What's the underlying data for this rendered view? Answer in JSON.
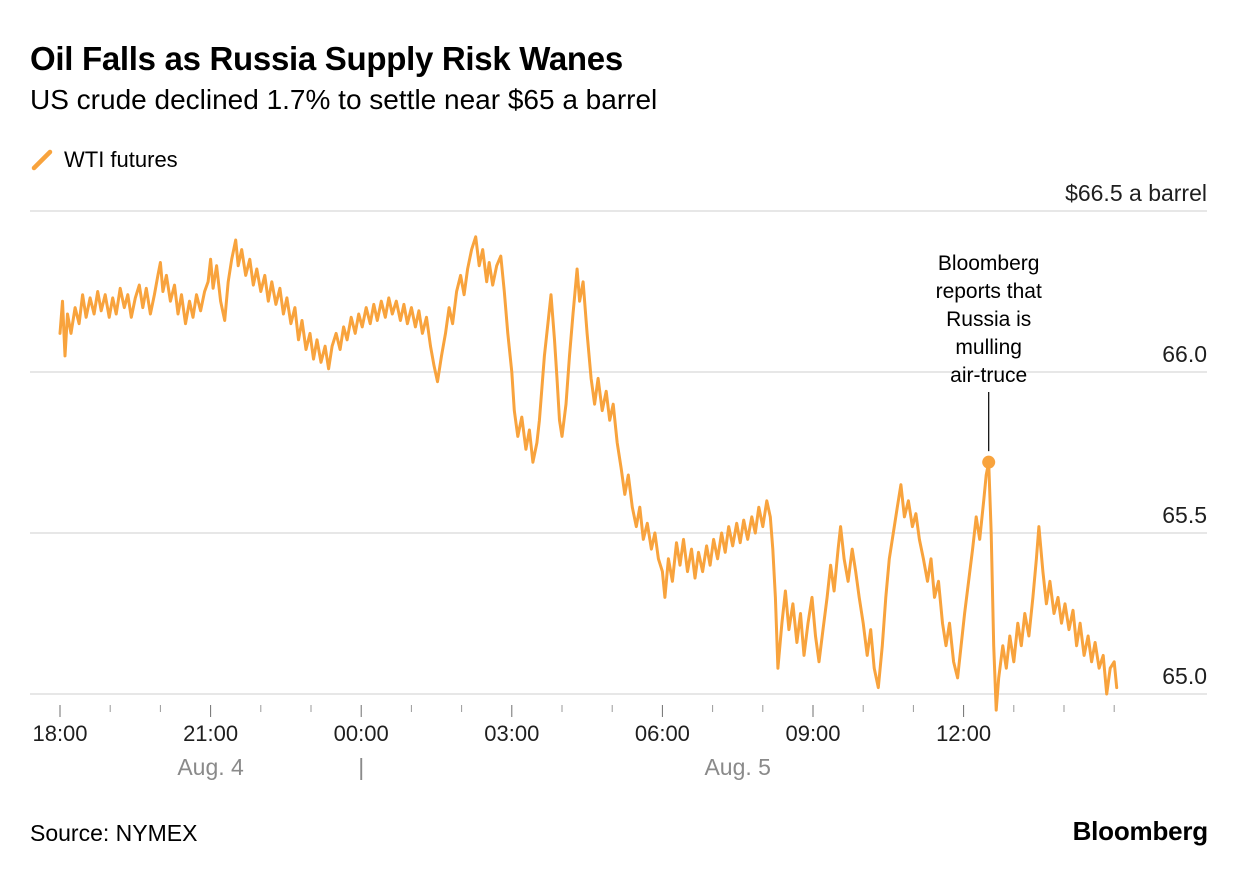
{
  "header": {
    "title": "Oil Falls as Russia Supply Risk Wanes",
    "subtitle": "US crude declined 1.7% to settle near $65 a barrel"
  },
  "legend": {
    "series_label": "WTI futures"
  },
  "footer": {
    "source": "Source: NYMEX",
    "brand": "Bloomberg"
  },
  "chart_data": {
    "type": "line",
    "title": "Oil Falls as Russia Supply Risk Wanes",
    "subtitle": "US crude declined 1.7% to settle near $65 a barrel",
    "x_unit": "hours since 18:00 on Aug. 4",
    "xlim": [
      0,
      21.1
    ],
    "ylim": [
      64.85,
      66.5
    ],
    "grid": "horizontal",
    "legend_position": "top-left",
    "accent_color": "#F8A33D",
    "yticks": [
      {
        "value": 66.5,
        "label": "$66.5 a barrel"
      },
      {
        "value": 66.0,
        "label": "66.0"
      },
      {
        "value": 65.5,
        "label": "65.5"
      },
      {
        "value": 65.0,
        "label": "65.0"
      }
    ],
    "xticks": [
      {
        "t": 0,
        "label": "18:00"
      },
      {
        "t": 3,
        "label": "21:00"
      },
      {
        "t": 6,
        "label": "00:00"
      },
      {
        "t": 9,
        "label": "03:00"
      },
      {
        "t": 12,
        "label": "06:00"
      },
      {
        "t": 15,
        "label": "09:00"
      },
      {
        "t": 18,
        "label": "12:00"
      }
    ],
    "minor_tick_every_hours": 1,
    "date_labels": [
      {
        "t_center": 3,
        "label": "Aug. 4"
      },
      {
        "t_center": 6,
        "label": "|"
      },
      {
        "t_center": 13.5,
        "label": "Aug. 5"
      }
    ],
    "annotation": {
      "lines": [
        "Bloomberg",
        "reports that",
        "Russia is",
        "mulling",
        "air-truce"
      ],
      "t": 18.5,
      "value": 65.72
    },
    "series": [
      {
        "name": "WTI futures",
        "color": "#F8A33D",
        "points": [
          [
            0,
            66.12
          ],
          [
            0.05,
            66.22
          ],
          [
            0.1,
            66.05
          ],
          [
            0.15,
            66.18
          ],
          [
            0.22,
            66.12
          ],
          [
            0.3,
            66.2
          ],
          [
            0.38,
            66.15
          ],
          [
            0.45,
            66.24
          ],
          [
            0.52,
            66.17
          ],
          [
            0.6,
            66.23
          ],
          [
            0.68,
            66.18
          ],
          [
            0.75,
            66.25
          ],
          [
            0.82,
            66.19
          ],
          [
            0.9,
            66.24
          ],
          [
            0.98,
            66.17
          ],
          [
            1.05,
            66.23
          ],
          [
            1.12,
            66.18
          ],
          [
            1.2,
            66.26
          ],
          [
            1.28,
            66.2
          ],
          [
            1.35,
            66.24
          ],
          [
            1.42,
            66.17
          ],
          [
            1.5,
            66.23
          ],
          [
            1.58,
            66.27
          ],
          [
            1.65,
            66.2
          ],
          [
            1.72,
            66.26
          ],
          [
            1.8,
            66.18
          ],
          [
            1.88,
            66.24
          ],
          [
            1.95,
            66.3
          ],
          [
            2,
            66.34
          ],
          [
            2.05,
            66.25
          ],
          [
            2.12,
            66.3
          ],
          [
            2.2,
            66.22
          ],
          [
            2.28,
            66.27
          ],
          [
            2.35,
            66.18
          ],
          [
            2.42,
            66.24
          ],
          [
            2.5,
            66.15
          ],
          [
            2.58,
            66.22
          ],
          [
            2.65,
            66.17
          ],
          [
            2.72,
            66.24
          ],
          [
            2.8,
            66.19
          ],
          [
            2.88,
            66.25
          ],
          [
            2.95,
            66.28
          ],
          [
            3,
            66.35
          ],
          [
            3.05,
            66.26
          ],
          [
            3.12,
            66.33
          ],
          [
            3.2,
            66.22
          ],
          [
            3.28,
            66.16
          ],
          [
            3.35,
            66.28
          ],
          [
            3.42,
            66.35
          ],
          [
            3.5,
            66.41
          ],
          [
            3.55,
            66.33
          ],
          [
            3.62,
            66.38
          ],
          [
            3.7,
            66.3
          ],
          [
            3.78,
            66.35
          ],
          [
            3.85,
            66.27
          ],
          [
            3.92,
            66.32
          ],
          [
            4,
            66.25
          ],
          [
            4.08,
            66.3
          ],
          [
            4.15,
            66.22
          ],
          [
            4.22,
            66.28
          ],
          [
            4.3,
            66.21
          ],
          [
            4.38,
            66.26
          ],
          [
            4.45,
            66.18
          ],
          [
            4.52,
            66.23
          ],
          [
            4.6,
            66.15
          ],
          [
            4.68,
            66.2
          ],
          [
            4.75,
            66.1
          ],
          [
            4.82,
            66.16
          ],
          [
            4.9,
            66.07
          ],
          [
            4.98,
            66.12
          ],
          [
            5.05,
            66.04
          ],
          [
            5.12,
            66.1
          ],
          [
            5.2,
            66.03
          ],
          [
            5.28,
            66.08
          ],
          [
            5.35,
            66.01
          ],
          [
            5.42,
            66.08
          ],
          [
            5.5,
            66.12
          ],
          [
            5.58,
            66.07
          ],
          [
            5.65,
            66.14
          ],
          [
            5.72,
            66.1
          ],
          [
            5.8,
            66.17
          ],
          [
            5.88,
            66.12
          ],
          [
            5.95,
            66.18
          ],
          [
            6.02,
            66.14
          ],
          [
            6.1,
            66.2
          ],
          [
            6.18,
            66.15
          ],
          [
            6.25,
            66.21
          ],
          [
            6.32,
            66.16
          ],
          [
            6.4,
            66.22
          ],
          [
            6.48,
            66.17
          ],
          [
            6.55,
            66.23
          ],
          [
            6.62,
            66.18
          ],
          [
            6.7,
            66.22
          ],
          [
            6.78,
            66.16
          ],
          [
            6.85,
            66.21
          ],
          [
            6.92,
            66.15
          ],
          [
            7,
            66.2
          ],
          [
            7.08,
            66.14
          ],
          [
            7.15,
            66.19
          ],
          [
            7.22,
            66.12
          ],
          [
            7.3,
            66.17
          ],
          [
            7.38,
            66.08
          ],
          [
            7.45,
            66.02
          ],
          [
            7.52,
            65.97
          ],
          [
            7.6,
            66.05
          ],
          [
            7.68,
            66.12
          ],
          [
            7.75,
            66.2
          ],
          [
            7.82,
            66.15
          ],
          [
            7.9,
            66.25
          ],
          [
            7.98,
            66.3
          ],
          [
            8.05,
            66.24
          ],
          [
            8.12,
            66.32
          ],
          [
            8.2,
            66.38
          ],
          [
            8.28,
            66.42
          ],
          [
            8.35,
            66.33
          ],
          [
            8.42,
            66.38
          ],
          [
            8.5,
            66.28
          ],
          [
            8.55,
            66.34
          ],
          [
            8.62,
            66.27
          ],
          [
            8.7,
            66.33
          ],
          [
            8.78,
            66.36
          ],
          [
            8.85,
            66.25
          ],
          [
            8.92,
            66.12
          ],
          [
            9,
            66
          ],
          [
            9.05,
            65.88
          ],
          [
            9.12,
            65.8
          ],
          [
            9.2,
            65.86
          ],
          [
            9.28,
            65.76
          ],
          [
            9.35,
            65.82
          ],
          [
            9.42,
            65.72
          ],
          [
            9.5,
            65.78
          ],
          [
            9.55,
            65.85
          ],
          [
            9.6,
            65.95
          ],
          [
            9.65,
            66.05
          ],
          [
            9.72,
            66.15
          ],
          [
            9.78,
            66.24
          ],
          [
            9.85,
            66.1
          ],
          [
            9.9,
            65.98
          ],
          [
            9.95,
            65.85
          ],
          [
            10,
            65.8
          ],
          [
            10.08,
            65.9
          ],
          [
            10.15,
            66.05
          ],
          [
            10.22,
            66.18
          ],
          [
            10.3,
            66.32
          ],
          [
            10.35,
            66.22
          ],
          [
            10.42,
            66.28
          ],
          [
            10.5,
            66.12
          ],
          [
            10.58,
            65.98
          ],
          [
            10.65,
            65.9
          ],
          [
            10.72,
            65.98
          ],
          [
            10.8,
            65.88
          ],
          [
            10.88,
            65.94
          ],
          [
            10.95,
            65.85
          ],
          [
            11.02,
            65.9
          ],
          [
            11.1,
            65.78
          ],
          [
            11.18,
            65.7
          ],
          [
            11.25,
            65.62
          ],
          [
            11.32,
            65.68
          ],
          [
            11.4,
            65.58
          ],
          [
            11.48,
            65.52
          ],
          [
            11.55,
            65.58
          ],
          [
            11.62,
            65.48
          ],
          [
            11.7,
            65.53
          ],
          [
            11.78,
            65.45
          ],
          [
            11.85,
            65.5
          ],
          [
            11.92,
            65.42
          ],
          [
            12,
            65.38
          ],
          [
            12.05,
            65.3
          ],
          [
            12.12,
            65.42
          ],
          [
            12.2,
            65.35
          ],
          [
            12.28,
            65.47
          ],
          [
            12.35,
            65.4
          ],
          [
            12.42,
            65.48
          ],
          [
            12.5,
            65.38
          ],
          [
            12.58,
            65.45
          ],
          [
            12.65,
            65.36
          ],
          [
            12.72,
            65.44
          ],
          [
            12.8,
            65.38
          ],
          [
            12.88,
            65.46
          ],
          [
            12.95,
            65.4
          ],
          [
            13.02,
            65.48
          ],
          [
            13.1,
            65.42
          ],
          [
            13.18,
            65.5
          ],
          [
            13.25,
            65.44
          ],
          [
            13.32,
            65.52
          ],
          [
            13.4,
            65.46
          ],
          [
            13.48,
            65.53
          ],
          [
            13.55,
            65.47
          ],
          [
            13.62,
            65.54
          ],
          [
            13.7,
            65.48
          ],
          [
            13.78,
            65.55
          ],
          [
            13.85,
            65.5
          ],
          [
            13.92,
            65.58
          ],
          [
            14,
            65.52
          ],
          [
            14.08,
            65.6
          ],
          [
            14.15,
            65.55
          ],
          [
            14.2,
            65.45
          ],
          [
            14.25,
            65.3
          ],
          [
            14.3,
            65.08
          ],
          [
            14.38,
            65.22
          ],
          [
            14.45,
            65.32
          ],
          [
            14.52,
            65.2
          ],
          [
            14.6,
            65.28
          ],
          [
            14.68,
            65.16
          ],
          [
            14.75,
            65.25
          ],
          [
            14.82,
            65.12
          ],
          [
            14.9,
            65.22
          ],
          [
            14.98,
            65.3
          ],
          [
            15.05,
            65.18
          ],
          [
            15.12,
            65.1
          ],
          [
            15.2,
            65.2
          ],
          [
            15.28,
            65.3
          ],
          [
            15.35,
            65.4
          ],
          [
            15.42,
            65.32
          ],
          [
            15.5,
            65.45
          ],
          [
            15.55,
            65.52
          ],
          [
            15.62,
            65.42
          ],
          [
            15.7,
            65.35
          ],
          [
            15.78,
            65.45
          ],
          [
            15.85,
            65.38
          ],
          [
            15.92,
            65.3
          ],
          [
            16,
            65.22
          ],
          [
            16.08,
            65.12
          ],
          [
            16.15,
            65.2
          ],
          [
            16.22,
            65.08
          ],
          [
            16.3,
            65.02
          ],
          [
            16.38,
            65.15
          ],
          [
            16.45,
            65.3
          ],
          [
            16.52,
            65.42
          ],
          [
            16.6,
            65.5
          ],
          [
            16.68,
            65.58
          ],
          [
            16.75,
            65.65
          ],
          [
            16.82,
            65.55
          ],
          [
            16.9,
            65.6
          ],
          [
            16.98,
            65.52
          ],
          [
            17.05,
            65.56
          ],
          [
            17.12,
            65.48
          ],
          [
            17.2,
            65.42
          ],
          [
            17.28,
            65.35
          ],
          [
            17.35,
            65.42
          ],
          [
            17.42,
            65.3
          ],
          [
            17.5,
            65.35
          ],
          [
            17.58,
            65.22
          ],
          [
            17.65,
            65.15
          ],
          [
            17.72,
            65.22
          ],
          [
            17.8,
            65.1
          ],
          [
            17.88,
            65.05
          ],
          [
            17.95,
            65.15
          ],
          [
            18.02,
            65.25
          ],
          [
            18.1,
            65.35
          ],
          [
            18.18,
            65.45
          ],
          [
            18.25,
            65.55
          ],
          [
            18.32,
            65.48
          ],
          [
            18.4,
            65.6
          ],
          [
            18.45,
            65.68
          ],
          [
            18.5,
            65.72
          ],
          [
            18.55,
            65.5
          ],
          [
            18.6,
            65.15
          ],
          [
            18.65,
            64.95
          ],
          [
            18.7,
            65.05
          ],
          [
            18.78,
            65.15
          ],
          [
            18.85,
            65.08
          ],
          [
            18.92,
            65.18
          ],
          [
            19,
            65.1
          ],
          [
            19.08,
            65.22
          ],
          [
            19.15,
            65.15
          ],
          [
            19.22,
            65.25
          ],
          [
            19.3,
            65.18
          ],
          [
            19.38,
            65.3
          ],
          [
            19.45,
            65.42
          ],
          [
            19.5,
            65.52
          ],
          [
            19.58,
            65.38
          ],
          [
            19.65,
            65.28
          ],
          [
            19.72,
            65.35
          ],
          [
            19.8,
            65.25
          ],
          [
            19.88,
            65.3
          ],
          [
            19.95,
            65.22
          ],
          [
            20.02,
            65.28
          ],
          [
            20.1,
            65.2
          ],
          [
            20.18,
            65.26
          ],
          [
            20.25,
            65.15
          ],
          [
            20.32,
            65.22
          ],
          [
            20.4,
            65.12
          ],
          [
            20.48,
            65.18
          ],
          [
            20.55,
            65.1
          ],
          [
            20.62,
            65.16
          ],
          [
            20.7,
            65.08
          ],
          [
            20.78,
            65.12
          ],
          [
            20.85,
            65
          ],
          [
            20.92,
            65.08
          ],
          [
            21,
            65.1
          ],
          [
            21.05,
            65.02
          ]
        ]
      }
    ]
  }
}
